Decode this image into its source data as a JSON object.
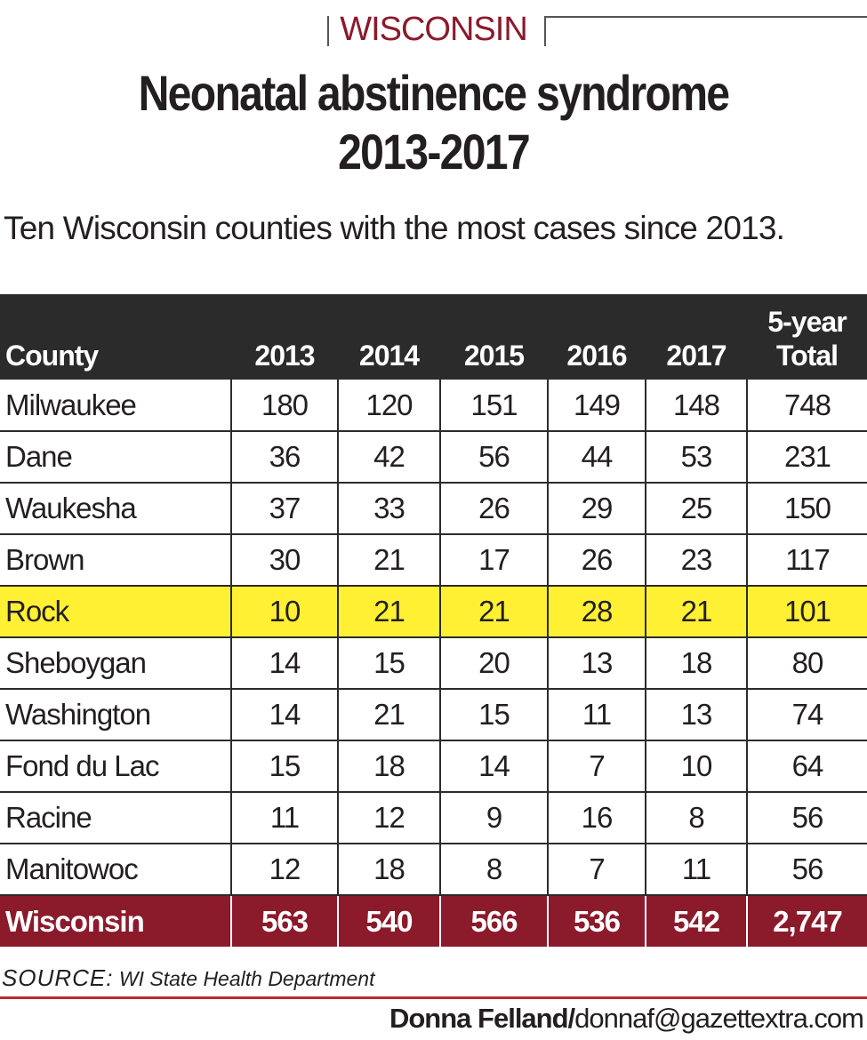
{
  "kicker": "WISCONSIN",
  "title_line1": "Neonatal abstinence syndrome",
  "title_line2": "2013-2017",
  "subtitle": "Ten Wisconsin counties with the most cases since 2013.",
  "table": {
    "headers": [
      "County",
      "2013",
      "2014",
      "2015",
      "2016",
      "2017",
      "5-year",
      "Total"
    ],
    "rows": [
      [
        "Milwaukee",
        "180",
        "120",
        "151",
        "149",
        "148",
        "748"
      ],
      [
        "Dane",
        "36",
        "42",
        "56",
        "44",
        "53",
        "231"
      ],
      [
        "Waukesha",
        "37",
        "33",
        "26",
        "29",
        "25",
        "150"
      ],
      [
        "Brown",
        "30",
        "21",
        "17",
        "26",
        "23",
        "117"
      ],
      [
        "Rock",
        "10",
        "21",
        "21",
        "28",
        "21",
        "101"
      ],
      [
        "Sheboygan",
        "14",
        "15",
        "20",
        "13",
        "18",
        "80"
      ],
      [
        "Washington",
        "14",
        "21",
        "15",
        "11",
        "13",
        "74"
      ],
      [
        "Fond du Lac",
        "15",
        "18",
        "14",
        "7",
        "10",
        "64"
      ],
      [
        "Racine",
        "11",
        "12",
        "9",
        "16",
        "8",
        "56"
      ],
      [
        "Manitowoc",
        "12",
        "18",
        "8",
        "7",
        "11",
        "56"
      ]
    ],
    "total": [
      "Wisconsin",
      "563",
      "540",
      "566",
      "536",
      "542",
      "2,747"
    ]
  },
  "chart_data": {
    "type": "table",
    "title": "Neonatal abstinence syndrome 2013-2017",
    "columns": [
      "County",
      "2013",
      "2014",
      "2015",
      "2016",
      "2017",
      "5-year Total"
    ],
    "rows": [
      {
        "county": "Milwaukee",
        "values": [
          180,
          120,
          151,
          149,
          148
        ],
        "total": 748
      },
      {
        "county": "Dane",
        "values": [
          36,
          42,
          56,
          44,
          53
        ],
        "total": 231
      },
      {
        "county": "Waukesha",
        "values": [
          37,
          33,
          26,
          29,
          25
        ],
        "total": 150
      },
      {
        "county": "Brown",
        "values": [
          30,
          21,
          17,
          26,
          23
        ],
        "total": 117
      },
      {
        "county": "Rock",
        "values": [
          10,
          21,
          21,
          28,
          21
        ],
        "total": 101
      },
      {
        "county": "Sheboygan",
        "values": [
          14,
          15,
          20,
          13,
          18
        ],
        "total": 80
      },
      {
        "county": "Washington",
        "values": [
          14,
          21,
          15,
          11,
          13
        ],
        "total": 74
      },
      {
        "county": "Fond du Lac",
        "values": [
          15,
          18,
          14,
          7,
          10
        ],
        "total": 64
      },
      {
        "county": "Racine",
        "values": [
          11,
          12,
          9,
          16,
          8
        ],
        "total": 56
      },
      {
        "county": "Manitowoc",
        "values": [
          12,
          18,
          8,
          7,
          11
        ],
        "total": 56
      }
    ],
    "total_row": {
      "county": "Wisconsin",
      "values": [
        563,
        540,
        566,
        536,
        542
      ],
      "total": 2747
    },
    "highlight_row": "Rock"
  },
  "source_label": "SOURCE:",
  "source_text": "WI State Health Department",
  "credit_name": "Donna Felland/",
  "credit_email": "donnaf@gazettextra.com",
  "colors": {
    "header_bg": "#2b2b2b",
    "total_bg": "#8b1a2b",
    "highlight": "#fff034",
    "kicker": "#8b1a2b",
    "rule": "#c1272d"
  }
}
